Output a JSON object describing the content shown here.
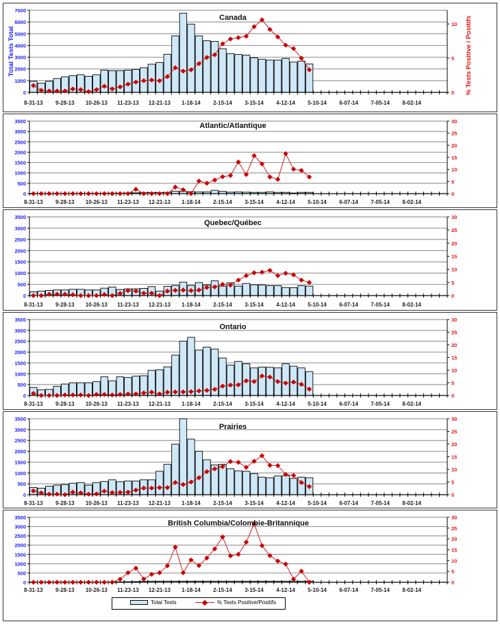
{
  "x_tick_labels": [
    "8-31-13",
    "9-28-13",
    "10-26-13",
    "11-23-13",
    "12-21-13",
    "1-18-14",
    "2-15-14",
    "3-15-14",
    "4-12-14",
    "5-10-14",
    "6-07-14",
    "7-05-14",
    "8-02-14"
  ],
  "legend": {
    "bar_label": "Total Tests",
    "line_label": "% Tests Positive/Positifs"
  },
  "colors": {
    "bar_fill": "#cfe8f7",
    "bar_stroke": "#000000",
    "line": "#cc1e1e",
    "marker": "#cc0000",
    "left_axis_text": "#1a1aff",
    "right_axis_text": "#e01010",
    "grid": "#9a9a9a"
  },
  "chart_data": [
    {
      "type": "bar",
      "title": "Canada",
      "ylabel": "Total Tests Total",
      "y2label": "% Tests Positive / Positifs",
      "week_count": 53,
      "ylim": [
        0,
        7000
      ],
      "yticks": [
        0,
        1000,
        2000,
        3000,
        4000,
        5000,
        6000,
        7000
      ],
      "y2lim": [
        0,
        12
      ],
      "y2ticks": [
        0,
        5,
        10
      ],
      "series": [
        {
          "name": "Total Tests",
          "kind": "bar",
          "values": [
            950,
            780,
            950,
            1180,
            1330,
            1420,
            1510,
            1370,
            1510,
            1900,
            1850,
            1850,
            1900,
            1960,
            2100,
            2400,
            2550,
            3250,
            4820,
            6750,
            5820,
            4820,
            4400,
            4350,
            3720,
            3300,
            3230,
            3180,
            2950,
            2820,
            2750,
            2750,
            2900,
            2580,
            2670,
            2420
          ]
        },
        {
          "name": "% Tests Positive/Positifs",
          "kind": "line",
          "values": [
            1.0,
            0.3,
            0.2,
            0.2,
            0.2,
            0.5,
            0.4,
            0.1,
            0.4,
            0.9,
            0.5,
            0.8,
            1.2,
            1.5,
            1.7,
            1.8,
            1.7,
            2.3,
            3.6,
            3.1,
            3.3,
            4.2,
            5.1,
            5.5,
            7.1,
            7.8,
            8.0,
            8.2,
            9.6,
            10.6,
            9.2,
            8.1,
            6.9,
            6.4,
            5.0,
            3.3
          ]
        }
      ]
    },
    {
      "type": "bar",
      "title": "Atlantic/Atlantique",
      "week_count": 53,
      "ylim": [
        0,
        3500
      ],
      "yticks": [
        0,
        500,
        1000,
        1500,
        2000,
        2500,
        3000,
        3500
      ],
      "y2lim": [
        0,
        30
      ],
      "y2ticks": [
        0,
        5,
        10,
        15,
        20,
        25,
        30
      ],
      "series": [
        {
          "name": "Total Tests",
          "kind": "bar",
          "values": [
            10,
            10,
            10,
            12,
            12,
            12,
            15,
            15,
            15,
            20,
            25,
            25,
            30,
            40,
            45,
            50,
            50,
            60,
            120,
            110,
            100,
            80,
            80,
            160,
            110,
            70,
            80,
            70,
            60,
            60,
            80,
            60,
            60,
            30,
            60,
            60
          ]
        },
        {
          "name": "% Tests Positive/Positifs",
          "kind": "line",
          "values": [
            0,
            0,
            0,
            0,
            0,
            0,
            0,
            0,
            0,
            0,
            0,
            0,
            0,
            1.8,
            0,
            0,
            0,
            0,
            2.7,
            1.6,
            0,
            5.2,
            4.3,
            5.6,
            7.0,
            7.5,
            13.1,
            7.9,
            15.7,
            12.3,
            6.9,
            5.9,
            16.5,
            10.1,
            9.6,
            6.9
          ]
        }
      ]
    },
    {
      "type": "bar",
      "title": "Quebec/Québec",
      "week_count": 53,
      "ylim": [
        0,
        3500
      ],
      "yticks": [
        0,
        500,
        1000,
        1500,
        2000,
        2500,
        3000,
        3500
      ],
      "y2lim": [
        0,
        30
      ],
      "y2ticks": [
        0,
        5,
        10,
        15,
        20,
        25,
        30
      ],
      "series": [
        {
          "name": "Total Tests",
          "kind": "bar",
          "values": [
            170,
            200,
            230,
            250,
            250,
            280,
            280,
            250,
            250,
            330,
            380,
            270,
            300,
            300,
            320,
            400,
            200,
            410,
            450,
            600,
            450,
            580,
            470,
            660,
            420,
            570,
            420,
            540,
            480,
            470,
            440,
            440,
            360,
            350,
            440,
            420
          ]
        },
        {
          "name": "% Tests Positive/Positifs",
          "kind": "line",
          "values": [
            0,
            0,
            0.5,
            0.5,
            0.5,
            0.3,
            0,
            0,
            0,
            0.4,
            0,
            0.8,
            1.9,
            1.7,
            0.9,
            0.9,
            0,
            1.7,
            2.0,
            2.1,
            1.9,
            2.1,
            3.1,
            3.3,
            4.3,
            4.0,
            5.9,
            7.6,
            8.7,
            8.9,
            9.6,
            7.6,
            8.5,
            7.9,
            5.9,
            5.0
          ]
        }
      ]
    },
    {
      "type": "bar",
      "title": "Ontario",
      "week_count": 53,
      "ylim": [
        0,
        3500
      ],
      "yticks": [
        0,
        500,
        1000,
        1500,
        2000,
        2500,
        3000,
        3500
      ],
      "y2lim": [
        0,
        30
      ],
      "y2ticks": [
        0,
        5,
        10,
        15,
        20,
        25,
        30
      ],
      "series": [
        {
          "name": "Total Tests",
          "kind": "bar",
          "values": [
            370,
            260,
            280,
            420,
            530,
            580,
            580,
            580,
            640,
            860,
            670,
            860,
            830,
            890,
            910,
            1160,
            1180,
            1320,
            1860,
            2500,
            2680,
            2090,
            2230,
            2140,
            1730,
            1400,
            1570,
            1460,
            1270,
            1310,
            1300,
            1270,
            1460,
            1350,
            1270,
            1100
          ]
        },
        {
          "name": "% Tests Positive/Positifs",
          "kind": "line",
          "values": [
            0.8,
            0,
            0,
            0,
            0.2,
            0.2,
            0.2,
            0,
            0.4,
            0.4,
            0.2,
            0.4,
            0.6,
            0.6,
            1.0,
            1.3,
            0.6,
            1.3,
            1.4,
            1.4,
            1.5,
            1.8,
            2.0,
            2.4,
            3.7,
            4.1,
            4.2,
            5.8,
            5.5,
            7.7,
            7.3,
            5.5,
            4.9,
            5.3,
            4.4,
            2.5
          ]
        }
      ]
    },
    {
      "type": "bar",
      "title": "Prairies",
      "week_count": 53,
      "ylim": [
        0,
        3500
      ],
      "yticks": [
        0,
        500,
        1000,
        1500,
        2000,
        2500,
        3000,
        3500
      ],
      "y2lim": [
        0,
        30
      ],
      "y2ticks": [
        0,
        5,
        10,
        15,
        20,
        25,
        30
      ],
      "series": [
        {
          "name": "Total Tests",
          "kind": "bar",
          "values": [
            330,
            300,
            390,
            440,
            470,
            530,
            560,
            440,
            560,
            610,
            690,
            600,
            630,
            630,
            690,
            690,
            1080,
            1400,
            2330,
            3500,
            2560,
            2000,
            1610,
            1370,
            1400,
            1200,
            1100,
            1080,
            970,
            810,
            780,
            860,
            880,
            750,
            810,
            780
          ]
        },
        {
          "name": "% Tests Positive/Positifs",
          "kind": "line",
          "values": [
            1.5,
            0.7,
            0.2,
            0.2,
            0,
            1.0,
            0.7,
            0.2,
            0.3,
            1.4,
            0.8,
            0.9,
            1.0,
            1.8,
            2.6,
            2.6,
            2.8,
            2.8,
            4.8,
            4.0,
            5.0,
            6.7,
            9.1,
            10.2,
            11.1,
            13.1,
            12.8,
            10.8,
            13.2,
            15.4,
            11.6,
            11.5,
            8.0,
            7.6,
            4.8,
            3.2
          ]
        }
      ]
    },
    {
      "type": "bar",
      "title": "British Columbia/Colombie-Britannique",
      "week_count": 53,
      "ylim": [
        0,
        3500
      ],
      "yticks": [
        0,
        500,
        1000,
        1500,
        2000,
        2500,
        3000,
        3500
      ],
      "y2lim": [
        0,
        30
      ],
      "y2ticks": [
        0,
        5,
        10,
        15,
        20,
        25,
        30
      ],
      "series": [
        {
          "name": "Total Tests",
          "kind": "bar",
          "values": [
            10,
            10,
            10,
            10,
            10,
            10,
            10,
            10,
            10,
            10,
            15,
            20,
            30,
            40,
            50,
            60,
            60,
            60,
            60,
            60,
            60,
            60,
            60,
            60,
            60,
            60,
            60,
            60,
            60,
            60,
            60,
            60,
            60,
            60,
            60,
            60
          ]
        },
        {
          "name": "% Tests Positive/Positifs",
          "kind": "line",
          "values": [
            0,
            0,
            0,
            0,
            0,
            0,
            0,
            0,
            0,
            0,
            0,
            1.4,
            4.4,
            6.5,
            1.5,
            3.7,
            4.4,
            7.6,
            16.2,
            4.4,
            10.3,
            7.7,
            11.2,
            15.4,
            20.9,
            12.2,
            12.9,
            18.5,
            27.0,
            16.9,
            12.3,
            9.8,
            8.4,
            1.4,
            5.1,
            0
          ]
        }
      ]
    }
  ]
}
